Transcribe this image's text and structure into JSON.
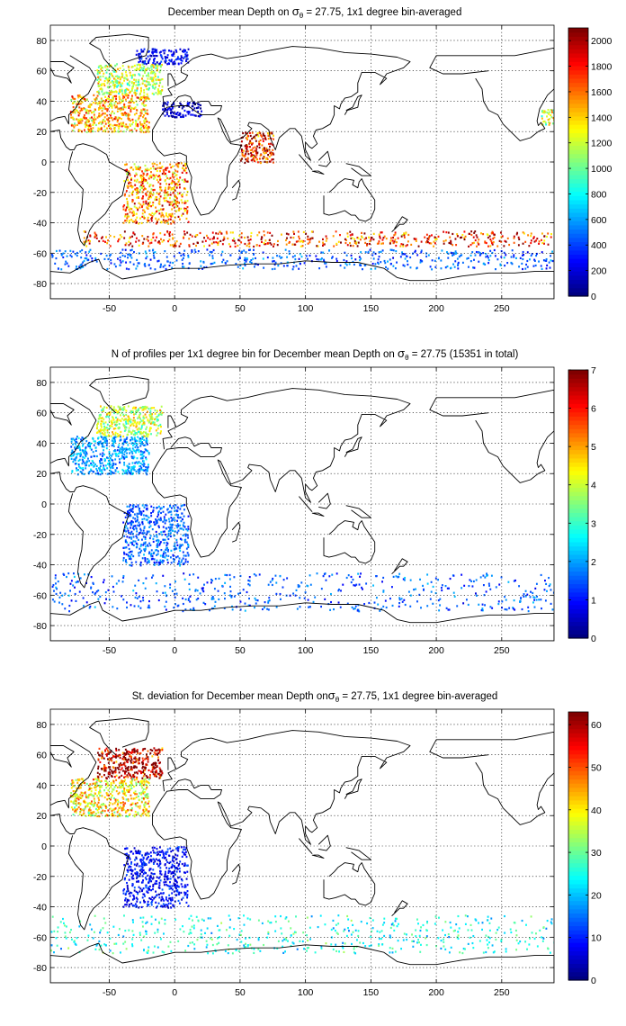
{
  "chart_data": [
    {
      "type": "heatmap",
      "title_parts": [
        "December mean Depth on ",
        "σ",
        "θ",
        " = 27.75, 1x1 degree bin-averaged"
      ],
      "xlabel": "",
      "ylabel": "",
      "xlim": [
        -95,
        290
      ],
      "ylim": [
        -90,
        90
      ],
      "xticks": [
        -50,
        0,
        50,
        100,
        150,
        200,
        250
      ],
      "yticks": [
        -80,
        -60,
        -40,
        -20,
        0,
        20,
        40,
        60,
        80
      ],
      "grid": true,
      "colorbar": {
        "min": 0,
        "max": 2100,
        "ticks": [
          0,
          200,
          400,
          600,
          800,
          1000,
          1200,
          1400,
          1600,
          1800,
          2000
        ]
      },
      "colormap": "jet",
      "regions": [
        {
          "region": "North Atlantic subpolar",
          "lon": [
            -60,
            -10
          ],
          "lat": [
            45,
            65
          ],
          "value": 1200
        },
        {
          "region": "North Atlantic subtropical",
          "lon": [
            -80,
            -20
          ],
          "lat": [
            20,
            45
          ],
          "value": 1450
        },
        {
          "region": "Labrador / Greenland margins",
          "lon": [
            -30,
            10
          ],
          "lat": [
            65,
            75
          ],
          "value": 250
        },
        {
          "region": "Mediterranean outflow",
          "lon": [
            -10,
            20
          ],
          "lat": [
            30,
            40
          ],
          "value": 150
        },
        {
          "region": "South Atlantic",
          "lon": [
            -40,
            10
          ],
          "lat": [
            -40,
            0
          ],
          "value": 1550
        },
        {
          "region": "Arabian Sea",
          "lon": [
            50,
            75
          ],
          "lat": [
            0,
            20
          ],
          "value": 1850
        },
        {
          "region": "Southern Ocean front",
          "lon": [
            -70,
            290
          ],
          "lat": [
            -55,
            -45
          ],
          "value": 1750
        },
        {
          "region": "Antarctic margin",
          "lon": [
            -95,
            290
          ],
          "lat": [
            -70,
            -57
          ],
          "value": 450
        },
        {
          "region": "North Pacific east edge",
          "lon": [
            280,
            290
          ],
          "lat": [
            25,
            35
          ],
          "value": 1250
        }
      ]
    },
    {
      "type": "heatmap",
      "title_parts": [
        "N of profiles per 1x1 degree bin for December mean Depth on ",
        "σ",
        "θ",
        " = 27.75 (15351 in total)"
      ],
      "xlabel": "",
      "ylabel": "",
      "xlim": [
        -95,
        290
      ],
      "ylim": [
        -90,
        90
      ],
      "xticks": [
        -50,
        0,
        50,
        100,
        150,
        200,
        250
      ],
      "yticks": [
        -80,
        -60,
        -40,
        -20,
        0,
        20,
        40,
        60,
        80
      ],
      "grid": true,
      "colorbar": {
        "min": 0,
        "max": 7,
        "ticks": [
          0,
          1,
          2,
          3,
          4,
          5,
          6,
          7
        ]
      },
      "colormap": "jet",
      "total_profiles": 15351,
      "regions": [
        {
          "region": "North Atlantic subpolar",
          "lon": [
            -60,
            -10
          ],
          "lat": [
            45,
            65
          ],
          "value": 4
        },
        {
          "region": "North Atlantic subtropical",
          "lon": [
            -80,
            -20
          ],
          "lat": [
            20,
            45
          ],
          "value": 2
        },
        {
          "region": "South Atlantic",
          "lon": [
            -40,
            10
          ],
          "lat": [
            -40,
            0
          ],
          "value": 1.5
        },
        {
          "region": "Southern Ocean",
          "lon": [
            -95,
            290
          ],
          "lat": [
            -70,
            -45
          ],
          "value": 1.5
        }
      ]
    },
    {
      "type": "heatmap",
      "title_parts": [
        "St. deviation for December mean Depth on",
        "σ",
        "θ",
        " = 27.75, 1x1 degree bin-averaged"
      ],
      "xlabel": "",
      "ylabel": "",
      "xlim": [
        -95,
        290
      ],
      "ylim": [
        -90,
        90
      ],
      "xticks": [
        -50,
        0,
        50,
        100,
        150,
        200,
        250
      ],
      "yticks": [
        -80,
        -60,
        -40,
        -20,
        0,
        20,
        40,
        60,
        80
      ],
      "grid": true,
      "colorbar": {
        "min": 0,
        "max": 63,
        "ticks": [
          0,
          10,
          20,
          30,
          40,
          50,
          60
        ]
      },
      "colormap": "jet",
      "regions": [
        {
          "region": "North Atlantic subpolar",
          "lon": [
            -60,
            -10
          ],
          "lat": [
            45,
            65
          ],
          "value": 60
        },
        {
          "region": "North Atlantic subtropical",
          "lon": [
            -80,
            -20
          ],
          "lat": [
            20,
            45
          ],
          "value": 40
        },
        {
          "region": "South Atlantic",
          "lon": [
            -40,
            10
          ],
          "lat": [
            -40,
            0
          ],
          "value": 8
        },
        {
          "region": "Southern Ocean",
          "lon": [
            -95,
            290
          ],
          "lat": [
            -70,
            -45
          ],
          "value": 25
        }
      ]
    }
  ]
}
